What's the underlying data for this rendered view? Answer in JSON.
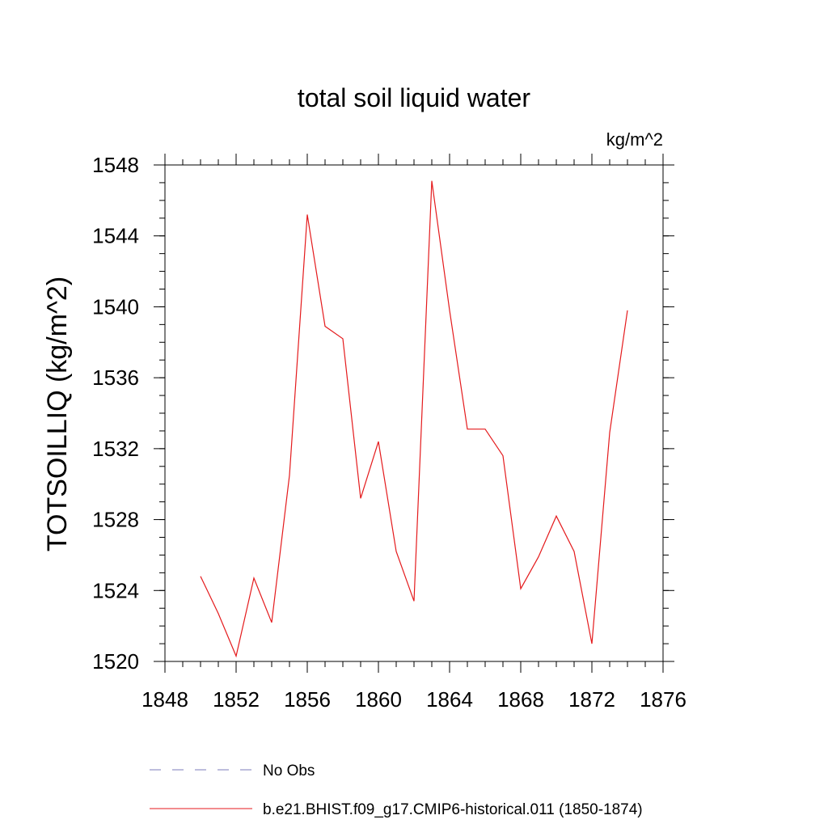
{
  "chart_data": {
    "type": "line",
    "title": "total soil liquid water",
    "units_label": "kg/m^2",
    "ylabel": "TOTSOILLIQ  (kg/m^2)",
    "xlabel": "",
    "xlim": [
      1848,
      1876
    ],
    "ylim": [
      1520,
      1548
    ],
    "x_ticks": [
      "1848",
      "1852",
      "1856",
      "1860",
      "1864",
      "1868",
      "1872",
      "1876"
    ],
    "y_ticks": [
      "1520",
      "1524",
      "1528",
      "1532",
      "1536",
      "1540",
      "1544",
      "1548"
    ],
    "x_minor_step": 1,
    "y_minor_step": 1,
    "grid": false,
    "legend_position": "bottom-below-plot",
    "series": [
      {
        "name": "b.e21.BHIST.f09_g17.CMIP6-historical.011 (1850-1874)",
        "color": "#e41a1c",
        "style": "solid",
        "x": [
          1850,
          1851,
          1852,
          1853,
          1854,
          1855,
          1856,
          1857,
          1858,
          1859,
          1860,
          1861,
          1862,
          1863,
          1864,
          1865,
          1866,
          1867,
          1868,
          1869,
          1870,
          1871,
          1872,
          1873,
          1874
        ],
        "values": [
          1524.8,
          1522.7,
          1520.3,
          1524.7,
          1522.2,
          1530.5,
          1545.2,
          1538.9,
          1538.2,
          1529.2,
          1532.4,
          1526.2,
          1523.4,
          1547.1,
          1539.8,
          1533.1,
          1533.1,
          1531.6,
          1524.1,
          1525.9,
          1528.2,
          1526.2,
          1521.0,
          1532.9,
          1539.8
        ]
      }
    ],
    "legend": [
      {
        "label": "No Obs",
        "color": "#7b7bbb",
        "style": "dashed"
      },
      {
        "label": "b.e21.BHIST.f09_g17.CMIP6-historical.011 (1850-1874)",
        "color": "#e41a1c",
        "style": "solid"
      }
    ]
  }
}
